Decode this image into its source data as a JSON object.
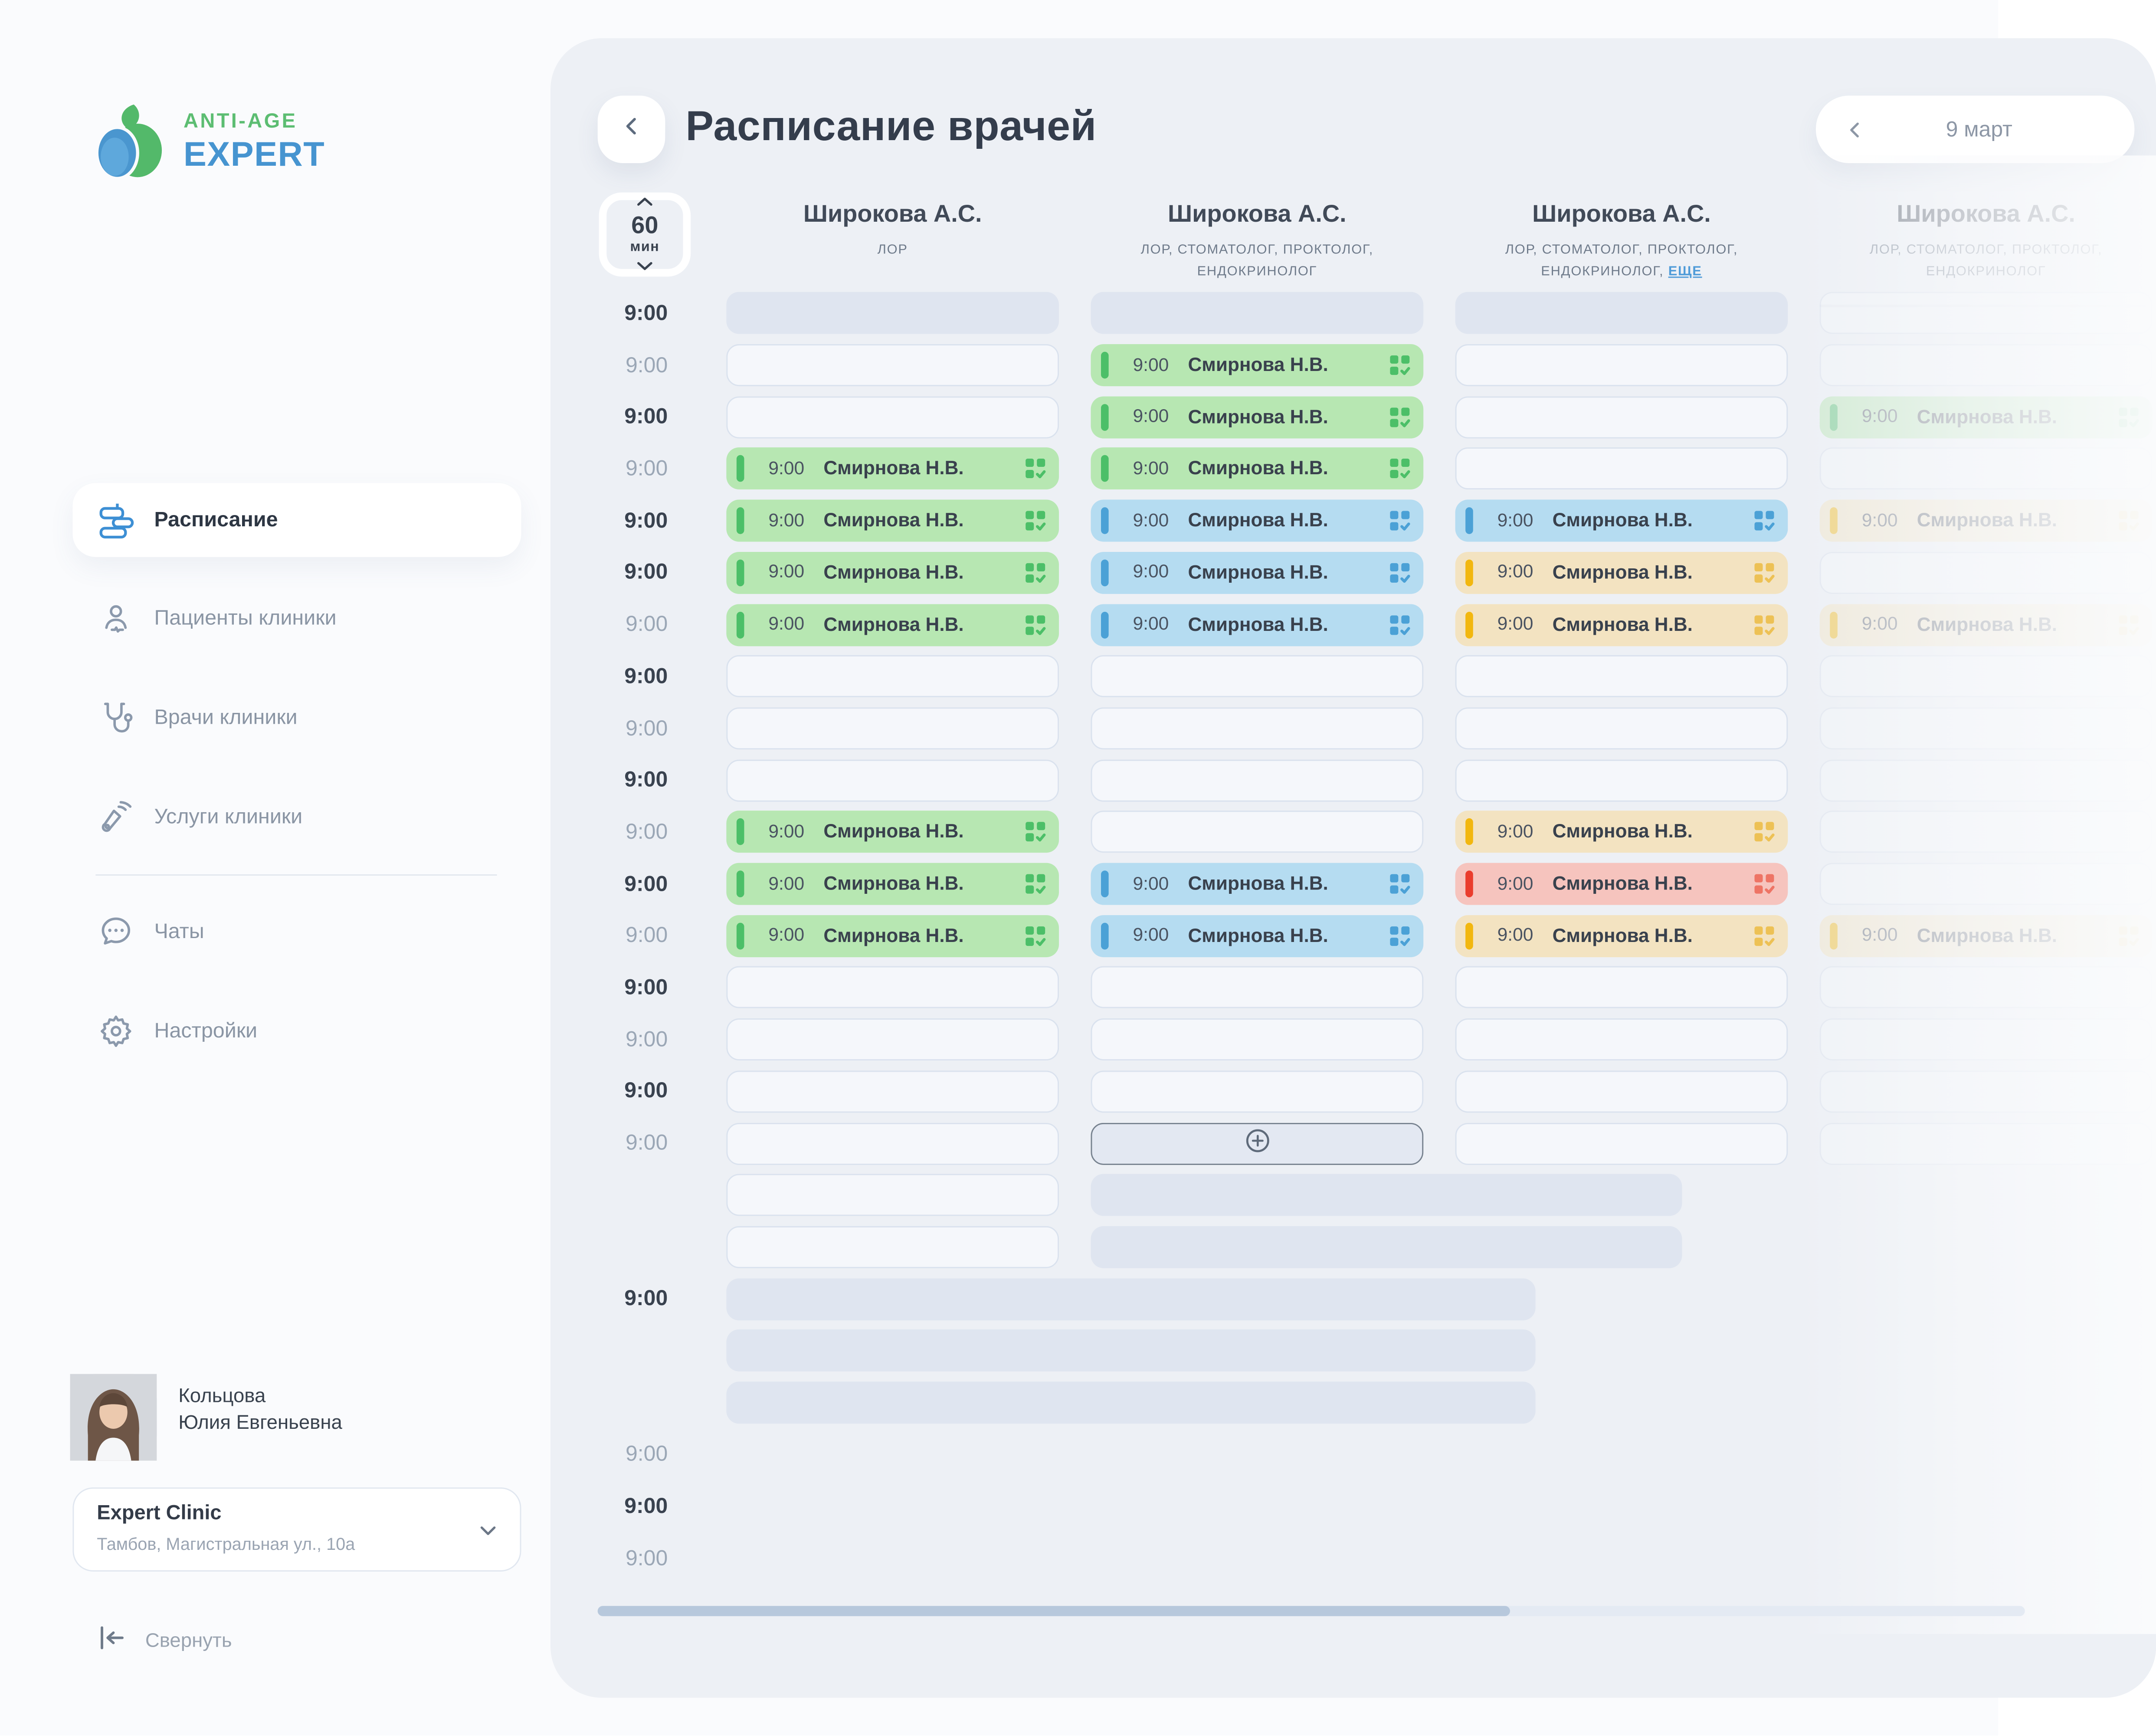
{
  "sidebar": {
    "logo": {
      "line1": "ANTI-AGE",
      "line2": "EXPERT",
      "icon": "apple-logo-icon",
      "colors": {
        "green": "#5cbd72",
        "blue": "#4694d0"
      }
    },
    "items": [
      {
        "label": "Расписание",
        "icon": "schedule-icon",
        "active": true
      },
      {
        "label": "Пациенты клиники",
        "icon": "patients-icon",
        "active": false
      },
      {
        "label": "Врачи клиники",
        "icon": "doctors-icon",
        "active": false
      },
      {
        "label": "Услуги клиники",
        "icon": "services-icon",
        "active": false
      },
      {
        "label": "Чаты",
        "icon": "chats-icon",
        "active": false
      },
      {
        "label": "Настройки",
        "icon": "settings-icon",
        "active": false
      }
    ],
    "user": {
      "name_line1": "Кольцова",
      "name_line2": "Юлия Евгеньевна"
    },
    "clinic": {
      "name": "Expert Clinic",
      "address": "Тамбов, Магистральная ул., 10а"
    },
    "collapse_label": "Свернуть"
  },
  "header": {
    "title": "Расписание врачей",
    "back_icon": "chevron-left-icon"
  },
  "date_nav": {
    "label": "9 март",
    "prev_icon": "chevron-left-icon"
  },
  "duration_stepper": {
    "value": "60",
    "unit": "мин",
    "up_icon": "chevron-up-icon",
    "down_icon": "chevron-down-icon"
  },
  "doctors": [
    {
      "name": "Широкова А.С.",
      "specialty": "ЛОР"
    },
    {
      "name": "Широкова А.С.",
      "specialty": "ЛОР, СТОМАТОЛОГ, ПРОКТОЛОГ, ЕНДОКРИНОЛОГ"
    },
    {
      "name": "Широкова А.С.",
      "specialty": "ЛОР, СТОМАТОЛОГ, ПРОКТОЛОГ, ЕНДОКРИНОЛОГ,",
      "more_label": "ЕЩЕ"
    },
    {
      "name": "Широкова А.С.",
      "specialty": "ЛОР, СТОМАТОЛОГ, ПРОКТОЛОГ, ЕНДОКРИНОЛОГ",
      "faded": true
    }
  ],
  "schedule": {
    "time_label": "9:00",
    "appointment_time": "9:00",
    "patient": "Смирнова Н.В.",
    "status_colors": {
      "green": "#4cbf68",
      "blue": "#4ba1d6",
      "orange": "#f2b70f",
      "red": "#ea3d2d"
    },
    "cell_types_legend": {
      "sk": "skeleton",
      "e": "empty-slot",
      "g": "green-appointment",
      "b": "blue-appointment",
      "o": "orange-appointment",
      "r": "red-appointment",
      "plus": "add-slot"
    },
    "rows": [
      {
        "t": "bold",
        "c": [
          "sk",
          "sk",
          "sk",
          "e"
        ]
      },
      {
        "t": "muted",
        "c": [
          "e",
          "g",
          "e",
          "e"
        ]
      },
      {
        "t": "bold",
        "c": [
          "e",
          "g",
          "e",
          "g"
        ]
      },
      {
        "t": "muted",
        "c": [
          "g",
          "g",
          "e",
          "e"
        ]
      },
      {
        "t": "bold",
        "c": [
          "g",
          "b",
          "b",
          "o"
        ]
      },
      {
        "t": "bold",
        "c": [
          "g",
          "b",
          "o",
          "e"
        ]
      },
      {
        "t": "muted",
        "c": [
          "g",
          "b",
          "o",
          "o"
        ]
      },
      {
        "t": "bold",
        "c": [
          "e",
          "e",
          "e",
          "e"
        ]
      },
      {
        "t": "muted",
        "c": [
          "e",
          "e",
          "e",
          "e"
        ]
      },
      {
        "t": "bold",
        "c": [
          "e",
          "e",
          "e",
          "e"
        ]
      },
      {
        "t": "muted",
        "c": [
          "g",
          "e",
          "o",
          "e"
        ]
      },
      {
        "t": "bold",
        "c": [
          "g",
          "b",
          "r",
          "e"
        ]
      },
      {
        "t": "muted",
        "c": [
          "g",
          "b",
          "o",
          "o"
        ]
      },
      {
        "t": "bold",
        "c": [
          "e",
          "e",
          "e",
          "e"
        ]
      },
      {
        "t": "muted",
        "c": [
          "e",
          "e",
          "e",
          "e"
        ]
      },
      {
        "t": "bold",
        "c": [
          "e",
          "e",
          "e",
          "e"
        ]
      },
      {
        "t": "muted",
        "c": [
          "e",
          "plus",
          "e",
          "e"
        ]
      },
      {
        "t": null,
        "c": [
          "e",
          null,
          null,
          null
        ],
        "band": "right"
      },
      {
        "t": null,
        "c": [
          "e",
          null,
          null,
          null
        ],
        "band": "right"
      },
      {
        "t": "bold",
        "c": [
          null,
          null,
          null,
          null
        ],
        "band": "full"
      },
      {
        "t": null,
        "c": [
          null,
          null,
          null,
          null
        ],
        "band": "full"
      },
      {
        "t": null,
        "c": [
          null,
          null,
          null,
          null
        ],
        "band": "full"
      },
      {
        "t": "muted",
        "c": [
          null,
          null,
          null,
          null
        ]
      },
      {
        "t": "bold",
        "c": [
          null,
          null,
          null,
          null
        ]
      },
      {
        "t": "muted",
        "c": [
          null,
          null,
          null,
          null
        ]
      }
    ]
  }
}
